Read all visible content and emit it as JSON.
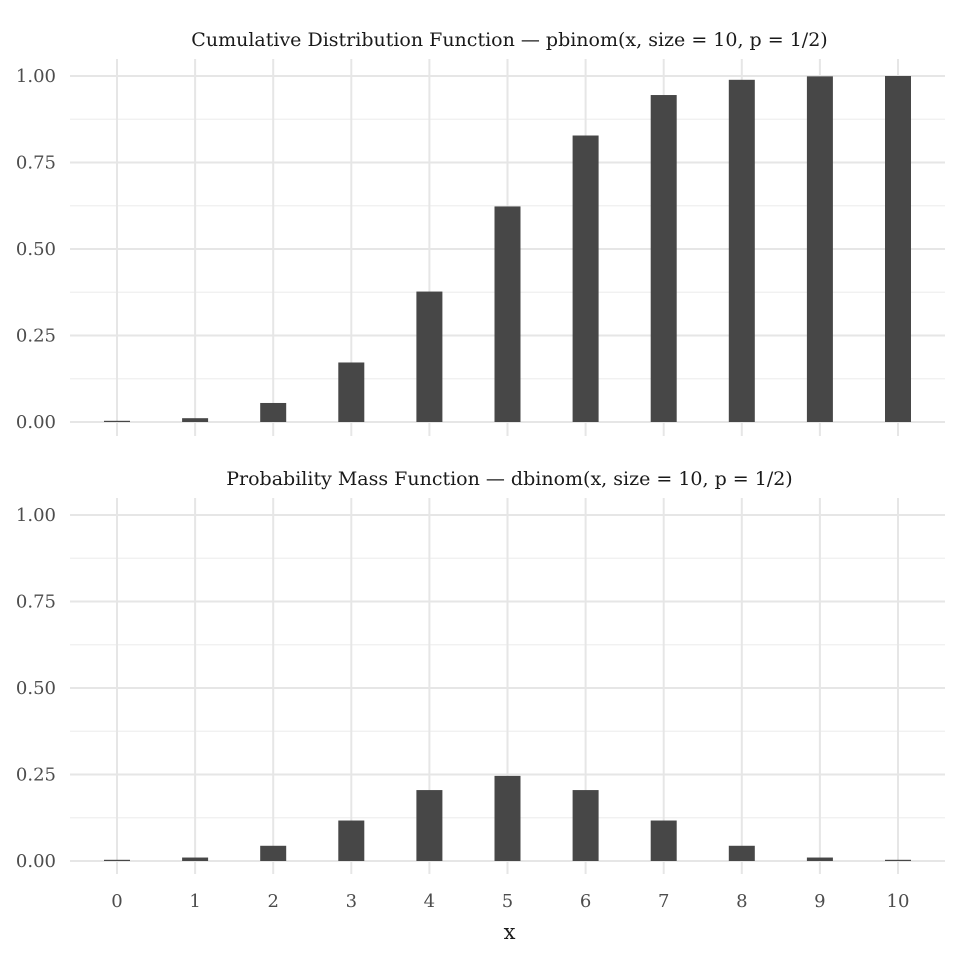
{
  "chart_data": [
    {
      "type": "bar",
      "title": "Cumulative Distribution Function — pbinom(x, size = 10, p = 1/2)",
      "xlabel": "",
      "ylabel": "",
      "x": [
        0,
        1,
        2,
        3,
        4,
        5,
        6,
        7,
        8,
        9,
        10
      ],
      "values": [
        0.001,
        0.011,
        0.055,
        0.172,
        0.377,
        0.623,
        0.828,
        0.945,
        0.989,
        0.999,
        1.0
      ],
      "ylim": [
        0,
        1
      ],
      "yticks": [
        "0.00",
        "0.25",
        "0.50",
        "0.75",
        "1.00"
      ],
      "xticks": [],
      "grid": true,
      "color": "#474747"
    },
    {
      "type": "bar",
      "title": "Probability Mass Function — dbinom(x, size = 10, p = 1/2)",
      "xlabel": "x",
      "ylabel": "",
      "x": [
        0,
        1,
        2,
        3,
        4,
        5,
        6,
        7,
        8,
        9,
        10
      ],
      "values": [
        0.001,
        0.01,
        0.044,
        0.117,
        0.205,
        0.246,
        0.205,
        0.117,
        0.044,
        0.01,
        0.001
      ],
      "ylim": [
        0,
        1
      ],
      "yticks": [
        "0.00",
        "0.25",
        "0.50",
        "0.75",
        "1.00"
      ],
      "xticks": [
        "0",
        "1",
        "2",
        "3",
        "4",
        "5",
        "6",
        "7",
        "8",
        "9",
        "10"
      ],
      "grid": true,
      "color": "#474747"
    }
  ]
}
